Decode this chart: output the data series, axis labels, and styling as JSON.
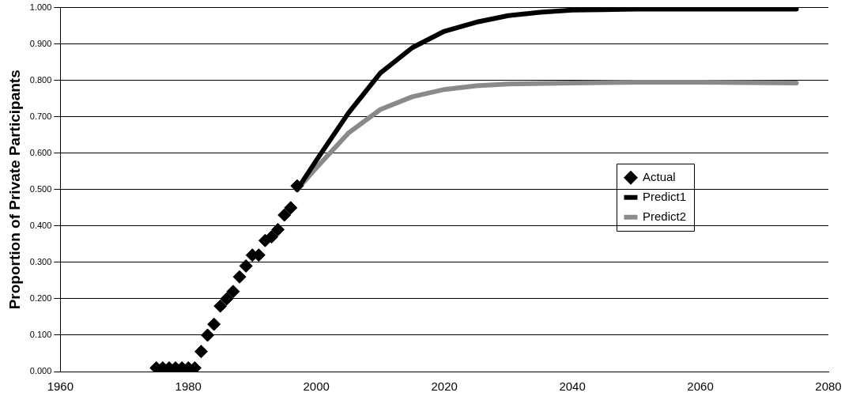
{
  "chart_data": {
    "type": "scatter",
    "ylabel": "Proportion of Private Participants",
    "xlim": [
      1960,
      2080
    ],
    "xticks": [
      1960,
      1980,
      2000,
      2020,
      2040,
      2060,
      2080
    ],
    "ylim": [
      0,
      1
    ],
    "yticks": [
      {
        "value": 0,
        "label": "0.000"
      },
      {
        "value": 0.1,
        "label": "0.100"
      },
      {
        "value": 0.2,
        "label": "0.200"
      },
      {
        "value": 0.3,
        "label": "0.300"
      },
      {
        "value": 0.4,
        "label": "0.400"
      },
      {
        "value": 0.5,
        "label": "0.500"
      },
      {
        "value": 0.6,
        "label": "0.600"
      },
      {
        "value": 0.7,
        "label": "0.700"
      },
      {
        "value": 0.8,
        "label": "0.800"
      },
      {
        "value": 0.9,
        "label": "0.900"
      },
      {
        "value": 1,
        "label": "1.000"
      }
    ],
    "grid": "y",
    "legend": "right",
    "marker": "diamond",
    "series": [
      {
        "name": "Actual",
        "type": "scatter",
        "color": "#000000",
        "x": [
          1975,
          1976,
          1977,
          1978,
          1979,
          1980,
          1981,
          1982,
          1983,
          1984,
          1985,
          1986,
          1987,
          1988,
          1989,
          1990,
          1991,
          1992,
          1993,
          1994,
          1995,
          1996,
          1997
        ],
        "values": [
          0.01,
          0.01,
          0.01,
          0.01,
          0.01,
          0.01,
          0.01,
          0.055,
          0.1,
          0.13,
          0.18,
          0.2,
          0.22,
          0.26,
          0.29,
          0.32,
          0.32,
          0.36,
          0.37,
          0.39,
          0.43,
          0.45,
          0.51
        ]
      },
      {
        "name": "Predict1",
        "type": "line",
        "color": "#000000",
        "marker": "none",
        "x": [
          1997,
          2000,
          2005,
          2010,
          2015,
          2020,
          2025,
          2030,
          2035,
          2040,
          2050,
          2060,
          2075
        ],
        "values": [
          0.5,
          0.58,
          0.71,
          0.82,
          0.89,
          0.935,
          0.96,
          0.978,
          0.987,
          0.993,
          0.996,
          0.996,
          0.996
        ]
      },
      {
        "name": "Predict2",
        "type": "line",
        "color": "#8a8a8a",
        "marker": "none",
        "x": [
          1997,
          2000,
          2005,
          2010,
          2015,
          2020,
          2025,
          2030,
          2040,
          2050,
          2060,
          2075
        ],
        "values": [
          0.5,
          0.56,
          0.655,
          0.72,
          0.755,
          0.775,
          0.785,
          0.79,
          0.793,
          0.795,
          0.795,
          0.793
        ]
      }
    ]
  }
}
